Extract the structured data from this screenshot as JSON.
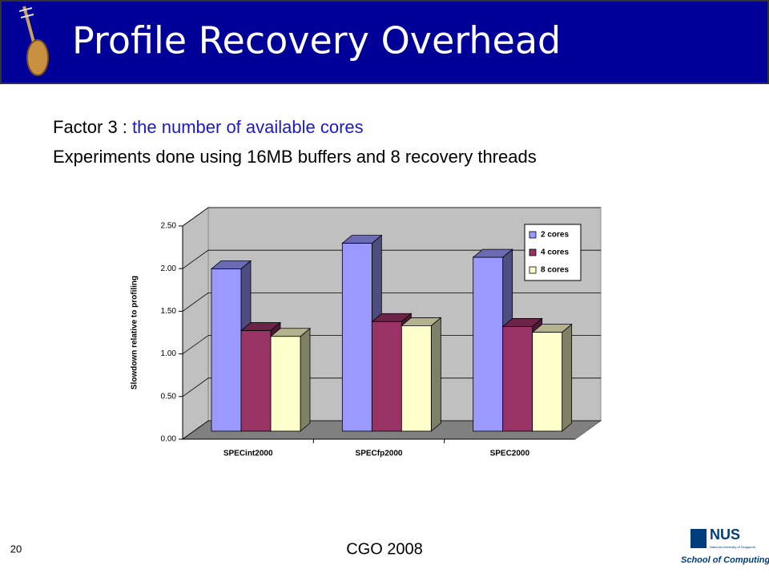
{
  "slide": {
    "title": "Profile Recovery Overhead",
    "factor_prefix": "Factor 3 : ",
    "factor_text": "the number of available cores",
    "experiments": "Experiments done using 16MB buffers and 8 recovery threads",
    "footer": "CGO 2008",
    "page_number": "20",
    "logo": {
      "name": "NUS",
      "university": "National University of Singapore",
      "school": "School of Computing"
    }
  },
  "chart_data": {
    "type": "bar3d",
    "y_label": "Slowdown relative to profiling",
    "categories": [
      "SPECint2000",
      "SPECfp2000",
      "SPEC2000"
    ],
    "series": [
      {
        "name": "2 cores",
        "color": "#9999ff",
        "values": [
          1.97,
          2.28,
          2.11
        ]
      },
      {
        "name": "4 cores",
        "color": "#993366",
        "values": [
          1.22,
          1.33,
          1.27
        ]
      },
      {
        "name": "8 cores",
        "color": "#ffffcc",
        "values": [
          1.15,
          1.28,
          1.2
        ]
      }
    ],
    "ylim": [
      0,
      2.5
    ],
    "yticks": [
      {
        "value": 0,
        "label": "0.00"
      },
      {
        "value": 0.5,
        "label": "0.50"
      },
      {
        "value": 1,
        "label": "1.00"
      },
      {
        "value": 1.5,
        "label": "1.50"
      },
      {
        "value": 2,
        "label": "2.00"
      },
      {
        "value": 2.5,
        "label": "2.50"
      }
    ],
    "grid": true,
    "legend": "top-right"
  }
}
